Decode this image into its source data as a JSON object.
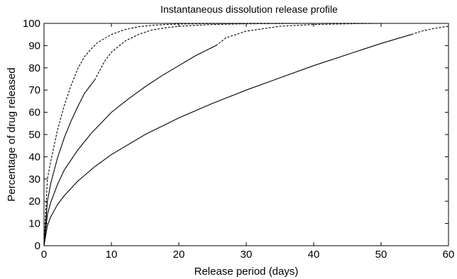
{
  "chart_data": {
    "type": "line",
    "title": "Instantaneous dissolution release profile",
    "xlabel": "Release period (days)",
    "ylabel": "Percentage of drug released",
    "xlim": [
      0,
      60
    ],
    "ylim": [
      0,
      100
    ],
    "xticks": [
      0,
      10,
      20,
      30,
      40,
      50,
      60
    ],
    "yticks": [
      0,
      10,
      20,
      30,
      40,
      50,
      60,
      70,
      80,
      90,
      100
    ],
    "grid": false,
    "legend": "none",
    "line_color": "#000000",
    "series": [
      {
        "x": [
          0,
          0.5,
          1,
          2,
          3,
          4,
          5,
          6,
          7.5
        ],
        "y": [
          0,
          20,
          28,
          39.5,
          48.5,
          56,
          62.5,
          68.5,
          74.5
        ],
        "style": "solid"
      },
      {
        "x": [
          7.5,
          9,
          10,
          12,
          14,
          16,
          18,
          20,
          25,
          30,
          40,
          50,
          60
        ],
        "y": [
          74.5,
          83,
          87,
          92,
          95,
          97,
          98,
          98.7,
          99.5,
          99.8,
          100,
          100,
          100
        ],
        "style": "dashed"
      },
      {
        "x": [
          0,
          0.5,
          1,
          2,
          3,
          5,
          7,
          10,
          12.5,
          15,
          17.5,
          20,
          22.5,
          25.5
        ],
        "y": [
          0,
          14,
          19.5,
          27.5,
          34,
          43,
          50.5,
          60,
          66,
          71.5,
          76.5,
          81,
          85.5,
          90
        ],
        "style": "solid"
      },
      {
        "x": [
          25.5,
          27,
          30,
          35,
          40,
          45,
          50,
          55,
          60
        ],
        "y": [
          90,
          93.5,
          96.5,
          98.7,
          99.5,
          99.8,
          100,
          100,
          100
        ],
        "style": "dashed"
      },
      {
        "x": [
          0,
          0.5,
          1,
          2,
          3,
          5,
          7.5,
          10,
          15,
          20,
          25,
          30,
          35,
          40,
          45,
          50,
          54.5
        ],
        "y": [
          0,
          9,
          13,
          18.5,
          22.5,
          29,
          35.5,
          41,
          50,
          57.5,
          64,
          70,
          75.5,
          81,
          86,
          91,
          95
        ],
        "style": "solid"
      },
      {
        "x": [
          54.5,
          56,
          58,
          60
        ],
        "y": [
          95,
          96.5,
          97.8,
          98.7
        ],
        "style": "dashed"
      },
      {
        "x": [
          0,
          0.5,
          1,
          2,
          3,
          4,
          5,
          6,
          7,
          8,
          10,
          12,
          14,
          16,
          18,
          20,
          25,
          30,
          40,
          60
        ],
        "y": [
          0,
          30,
          38,
          52,
          63,
          72,
          79.5,
          85,
          88.5,
          91.5,
          95,
          97.2,
          98.5,
          99.1,
          99.5,
          99.7,
          99.9,
          100,
          100,
          100
        ],
        "style": "dashed"
      }
    ]
  }
}
